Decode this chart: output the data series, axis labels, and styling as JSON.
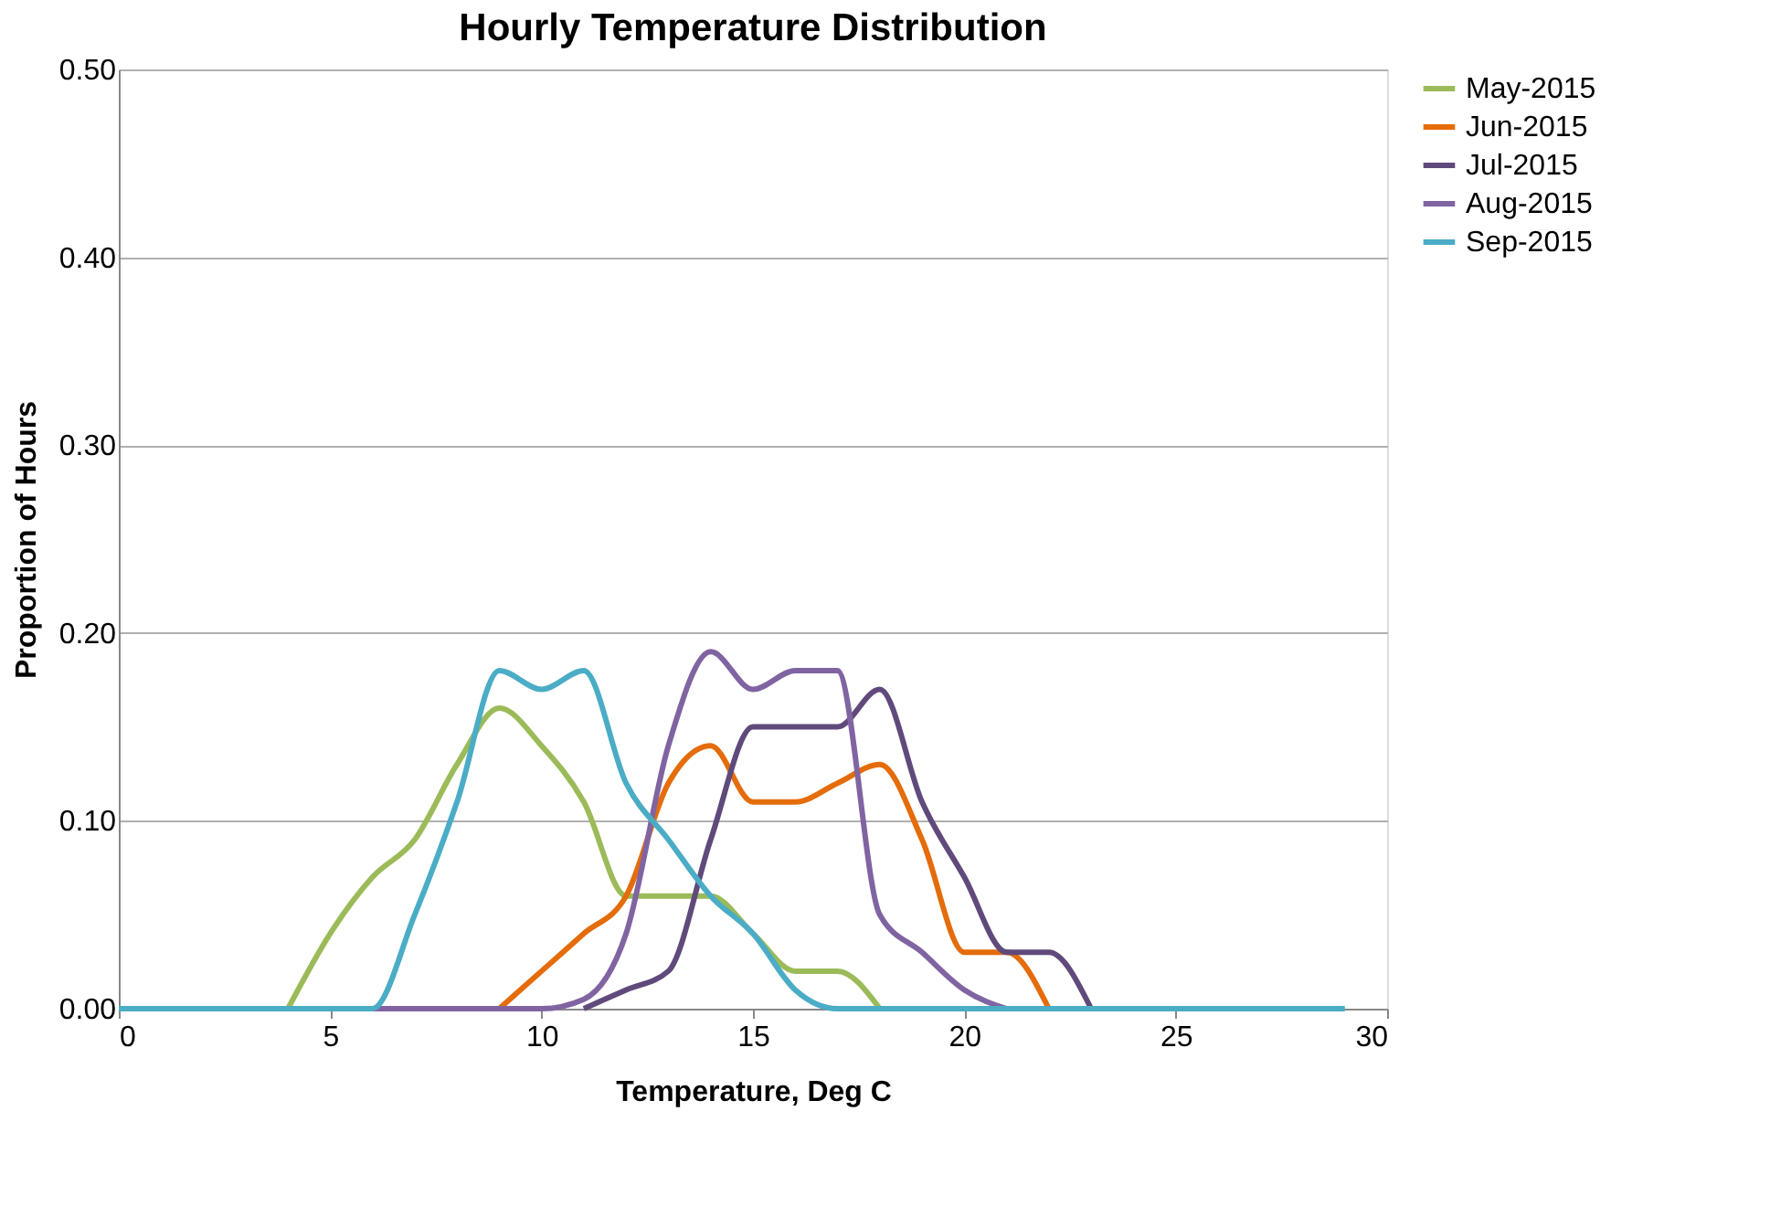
{
  "chart_data": {
    "type": "line",
    "title": "Hourly Temperature Distribution",
    "xlabel": "Temperature, Deg C",
    "ylabel": "Proportion of Hours",
    "x": [
      0,
      1,
      2,
      3,
      4,
      5,
      6,
      7,
      8,
      9,
      10,
      11,
      12,
      13,
      14,
      15,
      16,
      17,
      18,
      19,
      20,
      21,
      22,
      23,
      24,
      25,
      26,
      27,
      28,
      29
    ],
    "series": [
      {
        "name": "May-2015",
        "color": "#9bbb59",
        "values": [
          null,
          null,
          null,
          null,
          0,
          0.04,
          0.07,
          0.09,
          0.13,
          0.16,
          0.14,
          0.11,
          0.06,
          0.06,
          0.06,
          0.04,
          0.02,
          0.02,
          0,
          null,
          null,
          null,
          null,
          null,
          null,
          null,
          null,
          null,
          null,
          null
        ]
      },
      {
        "name": "Jun-2015",
        "color": "#e46c0a",
        "values": [
          null,
          null,
          null,
          null,
          null,
          null,
          null,
          null,
          null,
          0,
          0.02,
          0.04,
          0.06,
          0.12,
          0.14,
          0.11,
          0.11,
          0.12,
          0.13,
          0.09,
          0.03,
          0.03,
          0,
          null,
          null,
          null,
          null,
          null,
          null,
          null
        ]
      },
      {
        "name": "Jul-2015",
        "color": "#604a7b",
        "values": [
          null,
          null,
          null,
          null,
          null,
          null,
          null,
          null,
          null,
          null,
          null,
          0,
          0.01,
          0.02,
          0.09,
          0.15,
          0.15,
          0.15,
          0.17,
          0.11,
          0.07,
          0.03,
          0.03,
          0,
          null,
          null,
          null,
          null,
          null,
          null
        ]
      },
      {
        "name": "Aug-2015",
        "color": "#8064a2",
        "values": [
          null,
          null,
          null,
          null,
          null,
          null,
          0,
          0,
          0,
          0,
          0,
          0.005,
          0.04,
          0.14,
          0.19,
          0.17,
          0.18,
          0.18,
          0.05,
          0.03,
          0.01,
          0,
          null,
          null,
          null,
          null,
          null,
          null,
          null,
          null
        ]
      },
      {
        "name": "Sep-2015",
        "color": "#4bacc6",
        "values": [
          0,
          0,
          0,
          0,
          0,
          0,
          0,
          0.05,
          0.11,
          0.18,
          0.17,
          0.18,
          0.12,
          0.09,
          0.06,
          0.04,
          0.01,
          0,
          0,
          0,
          0,
          0,
          0,
          0,
          0,
          0,
          0,
          0,
          0,
          0
        ]
      }
    ],
    "xlim": [
      0,
      30
    ],
    "xticks": [
      0,
      5,
      10,
      15,
      20,
      25,
      30
    ],
    "ylim": [
      0,
      0.5
    ],
    "yticks": [
      {
        "value": 0,
        "label": "0.00"
      },
      {
        "value": 0.1,
        "label": "0.10"
      },
      {
        "value": 0.2,
        "label": "0.20"
      },
      {
        "value": 0.3,
        "label": "0.30"
      },
      {
        "value": 0.4,
        "label": "0.40"
      },
      {
        "value": 0.5,
        "label": "0.50"
      }
    ],
    "grid": "y",
    "legend": "right",
    "line_style": "solid",
    "marker": "none"
  }
}
